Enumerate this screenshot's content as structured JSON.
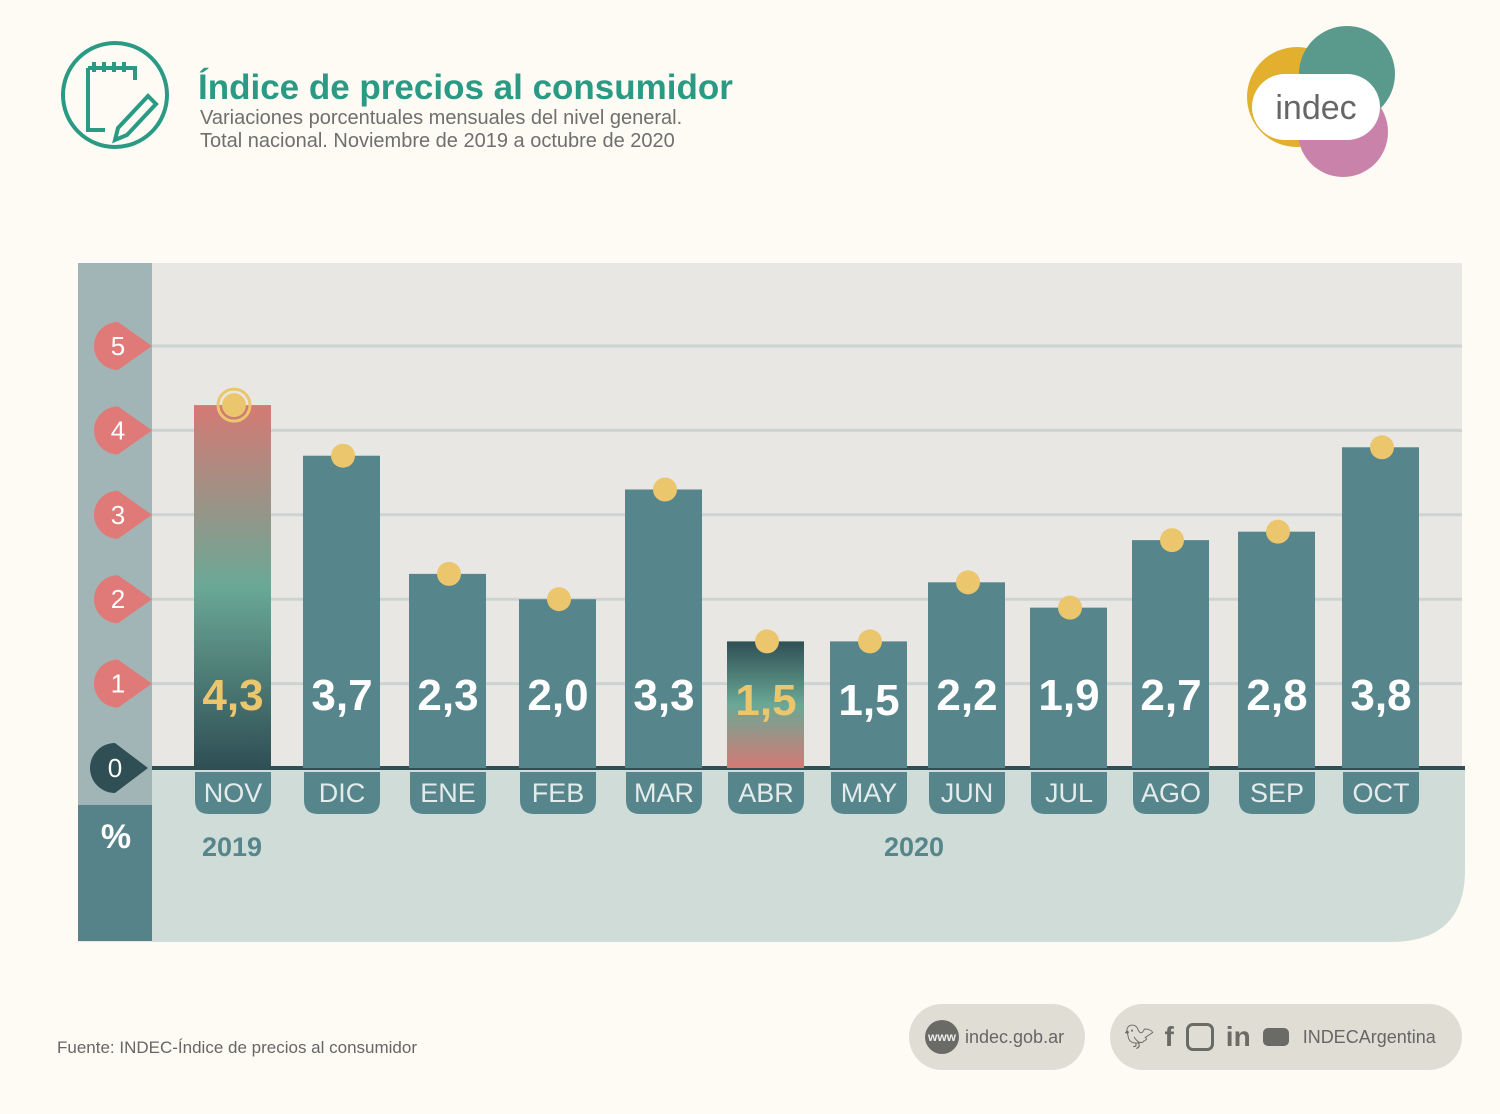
{
  "header": {
    "title": "Índice de precios al consumidor",
    "subtitle_line1": "Variaciones porcentuales mensuales del nivel general.",
    "subtitle_line2": "Total nacional. Noviembre de 2019 a octubre de 2020",
    "logo_text": "indec"
  },
  "chart_data": {
    "type": "bar",
    "categories": [
      "NOV",
      "DIC",
      "ENE",
      "FEB",
      "MAR",
      "ABR",
      "MAY",
      "JUN",
      "JUL",
      "AGO",
      "SEP",
      "OCT"
    ],
    "values": [
      4.3,
      3.7,
      2.3,
      2.0,
      3.3,
      1.5,
      1.5,
      2.2,
      1.9,
      2.7,
      2.8,
      3.8
    ],
    "value_labels": [
      "4,3",
      "3,7",
      "2,3",
      "2,0",
      "3,3",
      "1,5",
      "1,5",
      "2,2",
      "1,9",
      "2,7",
      "2,8",
      "3,8"
    ],
    "highlighted": [
      "NOV",
      "ABR"
    ],
    "year_labels": [
      {
        "label": "2019",
        "under": "NOV"
      },
      {
        "label": "2020",
        "under": "JUN"
      }
    ],
    "y_ticks": [
      "0",
      "1",
      "2",
      "3",
      "4",
      "5"
    ],
    "ylim": [
      0,
      5.5
    ],
    "yunit": "%",
    "grid": true,
    "colors": {
      "bar": "#56868c",
      "dot": "#ecc66d",
      "highlight_label": "#ecc66d",
      "tick_marker": "#e07a78"
    }
  },
  "footer": {
    "source": "Fuente: INDEC-Índice de precios al consumidor",
    "website_icon": "www",
    "website": "indec.gob.ar",
    "social_handle": "INDECArgentina",
    "social_icons": [
      "twitter-icon",
      "facebook-icon",
      "instagram-icon",
      "linkedin-icon",
      "youtube-icon"
    ]
  }
}
